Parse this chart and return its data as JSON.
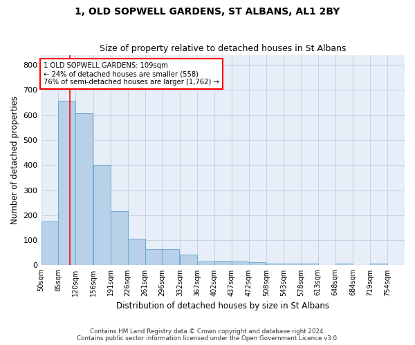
{
  "title": "1, OLD SOPWELL GARDENS, ST ALBANS, AL1 2BY",
  "subtitle": "Size of property relative to detached houses in St Albans",
  "xlabel": "Distribution of detached houses by size in St Albans",
  "ylabel": "Number of detached properties",
  "bar_color": "#b8d0e8",
  "bar_edge_color": "#6aaad4",
  "bins_left": [
    50,
    85,
    120,
    156,
    191,
    226,
    261,
    296,
    332,
    367,
    402,
    437,
    472,
    508,
    543,
    578,
    613,
    648,
    684,
    719
  ],
  "bin_width": 35,
  "bar_heights": [
    175,
    657,
    608,
    400,
    215,
    107,
    64,
    64,
    43,
    15,
    17,
    15,
    13,
    6,
    8,
    6,
    0,
    8,
    0,
    8
  ],
  "tick_labels": [
    "50sqm",
    "85sqm",
    "120sqm",
    "156sqm",
    "191sqm",
    "226sqm",
    "261sqm",
    "296sqm",
    "332sqm",
    "367sqm",
    "402sqm",
    "437sqm",
    "472sqm",
    "508sqm",
    "543sqm",
    "578sqm",
    "613sqm",
    "648sqm",
    "684sqm",
    "719sqm",
    "754sqm"
  ],
  "property_line_x": 109,
  "annotation_text_line1": "1 OLD SOPWELL GARDENS: 109sqm",
  "annotation_text_line2": "← 24% of detached houses are smaller (558)",
  "annotation_text_line3": "76% of semi-detached houses are larger (1,762) →",
  "grid_color": "#c8d4e4",
  "background_color": "#e8eef8",
  "footer_line1": "Contains HM Land Registry data © Crown copyright and database right 2024.",
  "footer_line2": "Contains public sector information licensed under the Open Government Licence v3.0.",
  "ylim": [
    0,
    840
  ],
  "yticks": [
    0,
    100,
    200,
    300,
    400,
    500,
    600,
    700,
    800
  ]
}
